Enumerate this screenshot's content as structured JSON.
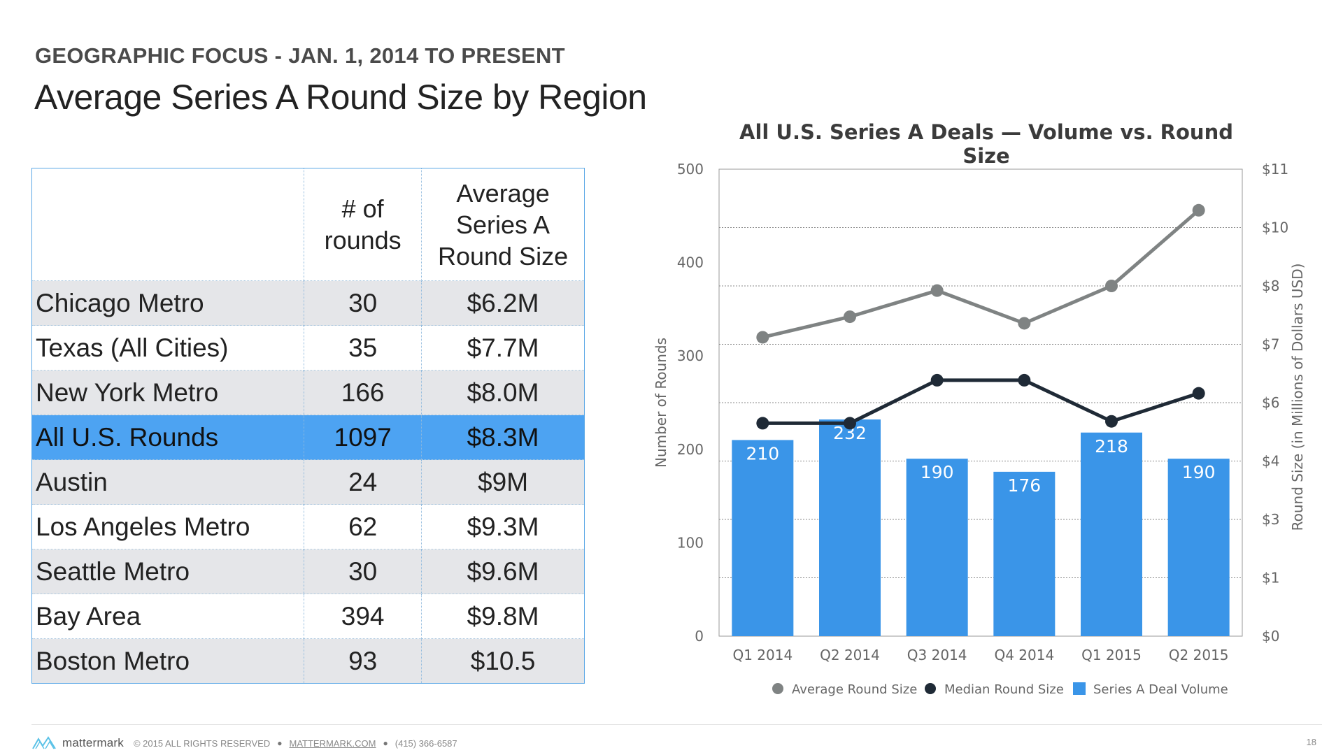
{
  "header": {
    "overline": "GEOGRAPHIC FOCUS - JAN. 1, 2014 TO PRESENT",
    "title": "Average Series A Round Size by Region"
  },
  "table": {
    "headers": [
      "",
      "# of rounds",
      "Average Series A Round Size"
    ],
    "rows": [
      {
        "region": "Chicago Metro",
        "rounds": "30",
        "avg": "$6.2M"
      },
      {
        "region": "Texas (All Cities)",
        "rounds": "35",
        "avg": "$7.7M"
      },
      {
        "region": "New York Metro",
        "rounds": "166",
        "avg": "$8.0M"
      },
      {
        "region": "All U.S. Rounds",
        "rounds": "1097",
        "avg": "$8.3M"
      },
      {
        "region": "Austin",
        "rounds": "24",
        "avg": "$9M"
      },
      {
        "region": "Los Angeles Metro",
        "rounds": "62",
        "avg": "$9.3M"
      },
      {
        "region": "Seattle Metro",
        "rounds": "30",
        "avg": "$9.6M"
      },
      {
        "region": "Bay Area",
        "rounds": "394",
        "avg": "$9.8M"
      },
      {
        "region": "Boston Metro",
        "rounds": "93",
        "avg": "$10.5"
      }
    ],
    "highlight_region": "All U.S. Rounds",
    "highlight_color": "#4da3f2",
    "shade_color": "#e5e6e9"
  },
  "chart_data": {
    "type": "bar",
    "title": "All U.S. Series A Deals — Volume vs. Round Size",
    "categories": [
      "Q1 2014",
      "Q2 2014",
      "Q3 2014",
      "Q4 2014",
      "Q1 2015",
      "Q2 2015"
    ],
    "ylabel_left": "Number of Rounds",
    "ylabel_right": "Round Size (in Millions of Dollars USD)",
    "ylim_left": [
      0,
      500
    ],
    "left_ticks": [
      "0",
      "100",
      "200",
      "300",
      "400",
      "500"
    ],
    "right_ticks": [
      "$0",
      "$1",
      "$3",
      "$4",
      "$6",
      "$7",
      "$8",
      "$10",
      "$11"
    ],
    "grid": true,
    "legend_position": "bottom",
    "series": [
      {
        "name": "Series A Deal Volume",
        "type": "bar",
        "axis": "left",
        "color": "#3a95e8",
        "values": [
          210,
          232,
          190,
          176,
          218,
          190
        ]
      },
      {
        "name": "Average Round Size",
        "type": "line",
        "axis": "left",
        "color": "#7f8383",
        "values": [
          320,
          342,
          370,
          335,
          375,
          456
        ]
      },
      {
        "name": "Median Round Size",
        "type": "line",
        "axis": "left",
        "color": "#1f2a36",
        "values": [
          228,
          228,
          274,
          274,
          230,
          260
        ]
      }
    ]
  },
  "footer": {
    "brand": "mattermark",
    "copyright": "© 2015 ALL RIGHTS RESERVED",
    "separator": "●",
    "site": "MATTERMARK.COM",
    "phone": "(415) 366-6587",
    "page_number": "18"
  }
}
